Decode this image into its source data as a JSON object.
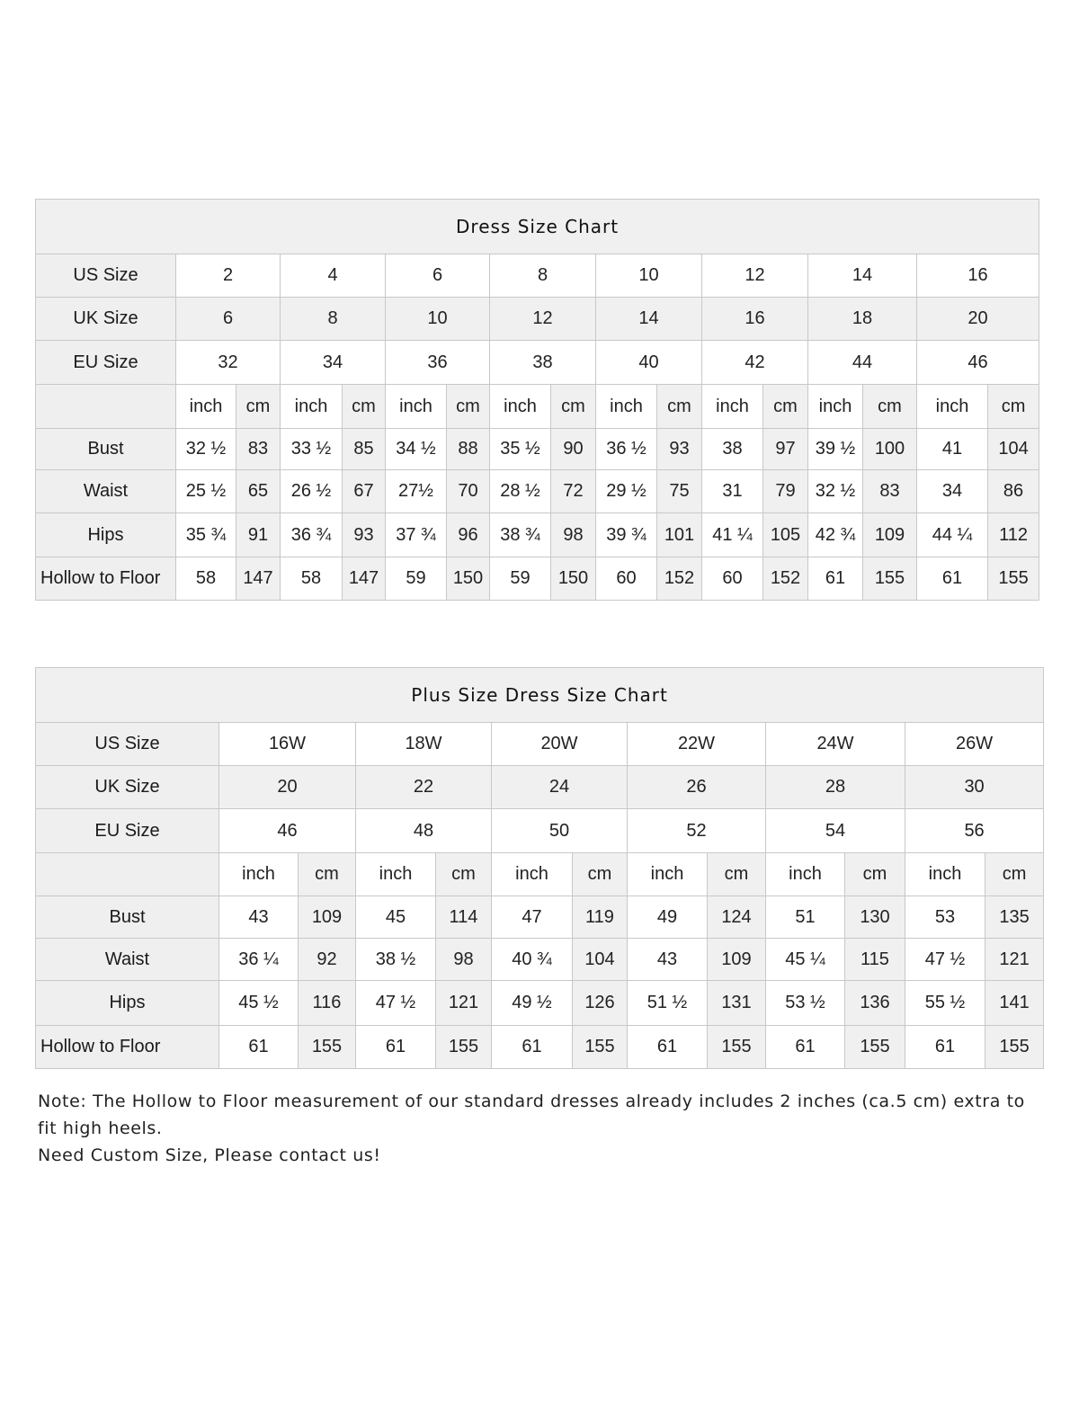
{
  "standard": {
    "title": "Dress Size Chart",
    "size_rows": [
      {
        "label": "US Size",
        "values": [
          "2",
          "4",
          "6",
          "8",
          "10",
          "12",
          "14",
          "16"
        ]
      },
      {
        "label": "UK Size",
        "values": [
          "6",
          "8",
          "10",
          "12",
          "14",
          "16",
          "18",
          "20"
        ]
      },
      {
        "label": "EU Size",
        "values": [
          "32",
          "34",
          "36",
          "38",
          "40",
          "42",
          "44",
          "46"
        ]
      }
    ],
    "unit_labels": [
      "inch",
      "cm"
    ],
    "measure_rows": [
      {
        "label": "Bust",
        "values": [
          [
            "32 ½",
            "83"
          ],
          [
            "33 ½",
            "85"
          ],
          [
            "34 ½",
            "88"
          ],
          [
            "35 ½",
            "90"
          ],
          [
            "36 ½",
            "93"
          ],
          [
            "38",
            "97"
          ],
          [
            "39 ½",
            "100"
          ],
          [
            "41",
            "104"
          ]
        ]
      },
      {
        "label": "Waist",
        "values": [
          [
            "25 ½",
            "65"
          ],
          [
            "26 ½",
            "67"
          ],
          [
            "27½",
            "70"
          ],
          [
            "28 ½",
            "72"
          ],
          [
            "29 ½",
            "75"
          ],
          [
            "31",
            "79"
          ],
          [
            "32 ½",
            "83"
          ],
          [
            "34",
            "86"
          ]
        ]
      },
      {
        "label": "Hips",
        "values": [
          [
            "35 ¾",
            "91"
          ],
          [
            "36 ¾",
            "93"
          ],
          [
            "37 ¾",
            "96"
          ],
          [
            "38 ¾",
            "98"
          ],
          [
            "39 ¾",
            "101"
          ],
          [
            "41 ¼",
            "105"
          ],
          [
            "42 ¾",
            "109"
          ],
          [
            "44 ¼",
            "112"
          ]
        ]
      },
      {
        "label": "Hollow to Floor",
        "values": [
          [
            "58",
            "147"
          ],
          [
            "58",
            "147"
          ],
          [
            "59",
            "150"
          ],
          [
            "59",
            "150"
          ],
          [
            "60",
            "152"
          ],
          [
            "60",
            "152"
          ],
          [
            "61",
            "155"
          ],
          [
            "61",
            "155"
          ]
        ]
      }
    ]
  },
  "plus": {
    "title": "Plus Size Dress Size Chart",
    "size_rows": [
      {
        "label": "US Size",
        "values": [
          "16W",
          "18W",
          "20W",
          "22W",
          "24W",
          "26W"
        ]
      },
      {
        "label": "UK Size",
        "values": [
          "20",
          "22",
          "24",
          "26",
          "28",
          "30"
        ]
      },
      {
        "label": "EU Size",
        "values": [
          "46",
          "48",
          "50",
          "52",
          "54",
          "56"
        ]
      }
    ],
    "unit_labels": [
      "inch",
      "cm"
    ],
    "measure_rows": [
      {
        "label": "Bust",
        "values": [
          [
            "43",
            "109"
          ],
          [
            "45",
            "114"
          ],
          [
            "47",
            "119"
          ],
          [
            "49",
            "124"
          ],
          [
            "51",
            "130"
          ],
          [
            "53",
            "135"
          ]
        ]
      },
      {
        "label": "Waist",
        "values": [
          [
            "36 ¼",
            "92"
          ],
          [
            "38 ½",
            "98"
          ],
          [
            "40 ¾",
            "104"
          ],
          [
            "43",
            "109"
          ],
          [
            "45 ¼",
            "115"
          ],
          [
            "47 ½",
            "121"
          ]
        ]
      },
      {
        "label": "Hips",
        "values": [
          [
            "45 ½",
            "116"
          ],
          [
            "47 ½",
            "121"
          ],
          [
            "49 ½",
            "126"
          ],
          [
            "51 ½",
            "131"
          ],
          [
            "53 ½",
            "136"
          ],
          [
            "55 ½",
            "141"
          ]
        ]
      },
      {
        "label": "Hollow to Floor",
        "values": [
          [
            "61",
            "155"
          ],
          [
            "61",
            "155"
          ],
          [
            "61",
            "155"
          ],
          [
            "61",
            "155"
          ],
          [
            "61",
            "155"
          ],
          [
            "61",
            "155"
          ]
        ]
      }
    ]
  },
  "note": {
    "line1": "Note: The Hollow to Floor measurement of our standard dresses already includes 2 inches (ca.5 cm) extra to fit high heels.",
    "line2": "Need Custom Size, Please contact us!"
  }
}
